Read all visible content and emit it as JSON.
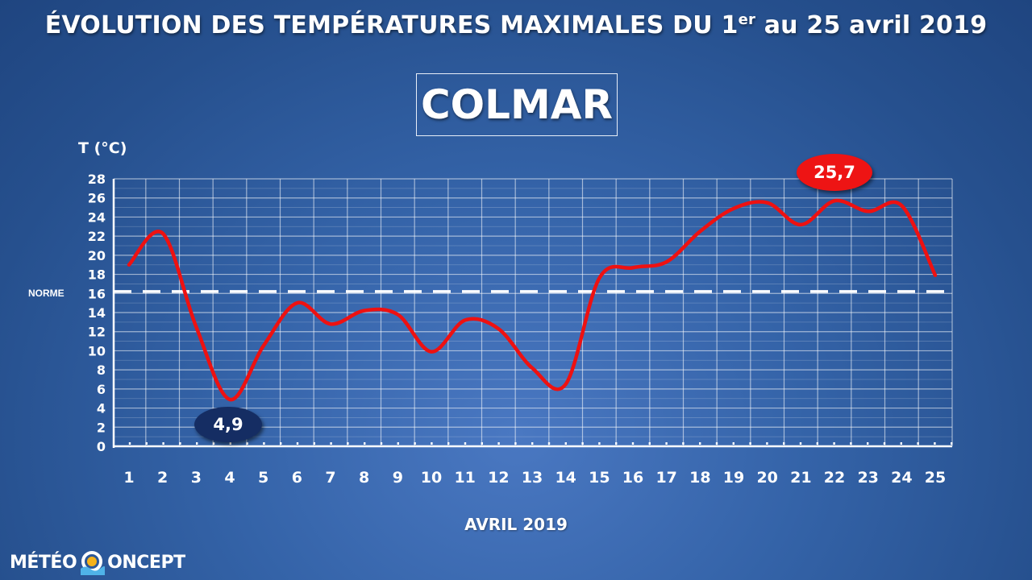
{
  "title": {
    "main": "ÉVOLUTION DES TEMPÉRATURES MAXIMALES DU 1",
    "sup": "er",
    "tail": " au 25 avril 2019"
  },
  "city": "COLMAR",
  "logo": {
    "left": "MÉTÉO",
    "right": "ONCEPT"
  },
  "colors": {
    "line": "#ee1111",
    "axis": "#ffffff",
    "grid": "#ffffff",
    "badge_min": "#152d63",
    "badge_max": "#ee1414"
  },
  "chart_data": {
    "type": "line",
    "ylabel": "T (°C)",
    "xlabel": "AVRIL 2019",
    "ylim": [
      0,
      28
    ],
    "yticks": [
      0,
      2,
      4,
      6,
      8,
      10,
      12,
      14,
      16,
      18,
      20,
      22,
      24,
      26,
      28
    ],
    "x": [
      "1",
      "2",
      "3",
      "4",
      "5",
      "6",
      "7",
      "8",
      "9",
      "10",
      "11",
      "12",
      "13",
      "14",
      "15",
      "16",
      "17",
      "18",
      "19",
      "20",
      "21",
      "22",
      "23",
      "24",
      "25"
    ],
    "series": [
      {
        "values": [
          19.0,
          22.3,
          12.5,
          4.9,
          10.5,
          15.0,
          12.8,
          14.2,
          13.8,
          9.9,
          13.2,
          12.3,
          8.2,
          6.5,
          17.6,
          18.7,
          19.3,
          22.5,
          24.9,
          25.5,
          23.2,
          25.7,
          24.6,
          25.2,
          17.9
        ]
      }
    ],
    "reference_line": {
      "label": "NORME",
      "value": 16.2
    },
    "annotations": [
      {
        "label": "4,9",
        "x": "4",
        "value": 4.9,
        "kind": "min"
      },
      {
        "label": "25,7",
        "x": "22",
        "value": 25.7,
        "kind": "max"
      }
    ],
    "grid": true
  }
}
